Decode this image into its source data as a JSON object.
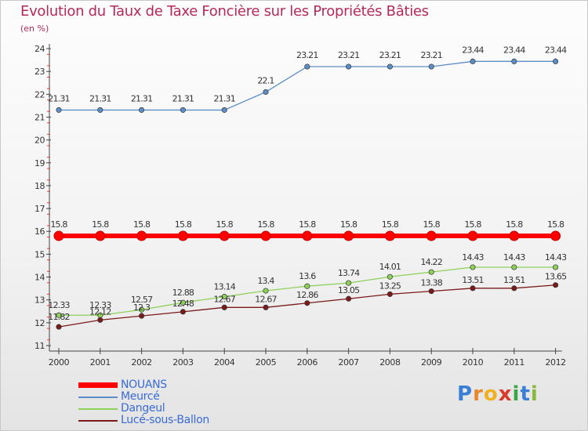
{
  "title": "Evolution du Taux de Taxe Foncière sur les Propriétés Bâties",
  "subtitle": "(en %)",
  "chart_data": {
    "type": "line",
    "title": "Evolution du Taux de Taxe Foncière sur les Propriétés Bâties",
    "ylabel": "(en %)",
    "xlabel": "",
    "ylim": [
      11,
      24
    ],
    "yticks": [
      "11",
      "12",
      "13",
      "14",
      "15",
      "16",
      "17",
      "18",
      "19",
      "20",
      "21",
      "22",
      "23",
      "24"
    ],
    "categories": [
      "2000",
      "2001",
      "2002",
      "2003",
      "2004",
      "2005",
      "2006",
      "2007",
      "2008",
      "2009",
      "2010",
      "2011",
      "2012"
    ],
    "series": [
      {
        "name": "NOUANS",
        "color": "#ff0000",
        "values": [
          15.8,
          15.8,
          15.8,
          15.8,
          15.8,
          15.8,
          15.8,
          15.8,
          15.8,
          15.8,
          15.8,
          15.8,
          15.8
        ],
        "labels": [
          "15.8",
          "15.8",
          "15.8",
          "15.8",
          "15.8",
          "15.8",
          "15.8",
          "15.8",
          "15.8",
          "15.8",
          "15.8",
          "15.8",
          "15.8"
        ]
      },
      {
        "name": "Meurcé",
        "color": "#5b8ec6",
        "values": [
          21.31,
          21.31,
          21.31,
          21.31,
          21.31,
          22.1,
          23.21,
          23.21,
          23.21,
          23.21,
          23.44,
          23.44,
          23.44
        ],
        "labels": [
          "21.31",
          "21.31",
          "21.31",
          "21.31",
          "21.31",
          "22.1",
          "23.21",
          "23.21",
          "23.21",
          "23.21",
          "23.44",
          "23.44",
          "23.44"
        ]
      },
      {
        "name": "Dangeul",
        "color": "#8ed15a",
        "values": [
          12.33,
          12.33,
          12.57,
          12.88,
          13.14,
          13.4,
          13.6,
          13.74,
          14.01,
          14.22,
          14.43,
          14.43,
          14.43
        ],
        "labels": [
          "12.33",
          "12.33",
          "12.57",
          "12.88",
          "13.14",
          "13.4",
          "13.6",
          "13.74",
          "14.01",
          "14.22",
          "14.43",
          "14.43",
          "14.43"
        ]
      },
      {
        "name": "Lucé-sous-Ballon",
        "color": "#7a1a1a",
        "values": [
          11.82,
          12.12,
          12.3,
          12.48,
          12.67,
          12.67,
          12.86,
          13.05,
          13.25,
          13.38,
          13.51,
          13.51,
          13.65
        ],
        "labels": [
          "11.82",
          "12.12",
          "12.3",
          "12.48",
          "12.67",
          "12.67",
          "12.86",
          "13.05",
          "13.25",
          "13.38",
          "13.51",
          "13.51",
          "13.65"
        ]
      }
    ],
    "legend": "bottom-left",
    "grid": false
  },
  "logo": {
    "letters": [
      "P",
      "r",
      "o",
      "x",
      "i",
      "t",
      "i"
    ],
    "colors": [
      "#3a7fd6",
      "#e8882a",
      "#f0b020",
      "#d93a2a",
      "#3aa64a",
      "#3a7fd6",
      "#8ab83a"
    ]
  }
}
